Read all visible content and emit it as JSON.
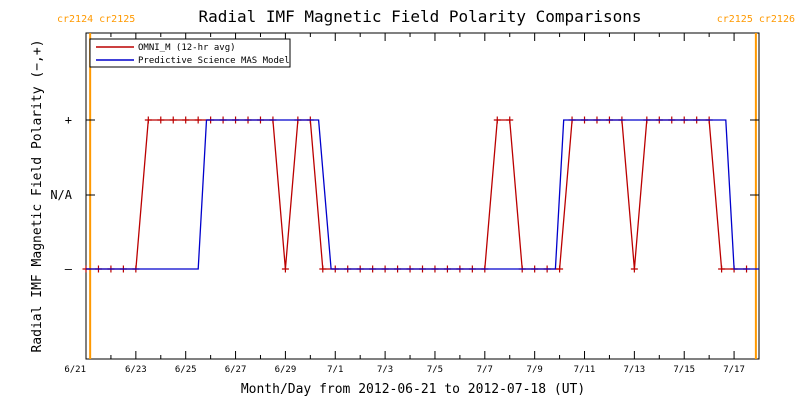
{
  "chart_data": {
    "type": "line",
    "title": "Radial IMF Magnetic Field Polarity Comparisons",
    "xlabel": "Month/Day from 2012-06-21 to 2012-07-18 (UT)",
    "ylabel": "Radial IMF Magnetic Field Polarity (−,+)",
    "y_tick_labels": [
      "–",
      "N/A",
      "+"
    ],
    "y_levels": [
      -1,
      0,
      1
    ],
    "xlim": [
      "2012-06-21",
      "2012-07-18"
    ],
    "x_tick_labels": [
      "6/21",
      "6/23",
      "6/25",
      "6/27",
      "6/29",
      "7/1",
      "7/3",
      "7/5",
      "7/7",
      "7/9",
      "7/11",
      "7/13",
      "7/15",
      "7/17"
    ],
    "x_tick_dates": [
      "2012-06-21",
      "2012-06-23",
      "2012-06-25",
      "2012-06-27",
      "2012-06-29",
      "2012-07-01",
      "2012-07-03",
      "2012-07-05",
      "2012-07-07",
      "2012-07-09",
      "2012-07-11",
      "2012-07-13",
      "2012-07-15",
      "2012-07-17"
    ],
    "carrington_markers": [
      {
        "label": "cr2124 cr2125",
        "date": "2012-06-21T04:00"
      },
      {
        "label": "cr2125 cr2126",
        "date": "2012-07-17T21:00"
      }
    ],
    "legend": {
      "position": "top-left"
    },
    "grid": false,
    "series": [
      {
        "name": "OMNI_M (12-hr avg)",
        "color": "#bb0000",
        "markers": "plus",
        "x": [
          "2012-06-21T00:00",
          "2012-06-21T12:00",
          "2012-06-22T00:00",
          "2012-06-22T12:00",
          "2012-06-23T00:00",
          "2012-06-23T12:00",
          "2012-06-24T00:00",
          "2012-06-24T12:00",
          "2012-06-25T00:00",
          "2012-06-25T12:00",
          "2012-06-26T00:00",
          "2012-06-26T12:00",
          "2012-06-27T00:00",
          "2012-06-27T12:00",
          "2012-06-28T00:00",
          "2012-06-28T12:00",
          "2012-06-29T00:00",
          "2012-06-29T12:00",
          "2012-06-30T00:00",
          "2012-06-30T12:00",
          "2012-07-01T00:00",
          "2012-07-01T12:00",
          "2012-07-02T00:00",
          "2012-07-02T12:00",
          "2012-07-03T00:00",
          "2012-07-03T12:00",
          "2012-07-04T00:00",
          "2012-07-04T12:00",
          "2012-07-05T00:00",
          "2012-07-05T12:00",
          "2012-07-06T00:00",
          "2012-07-06T12:00",
          "2012-07-07T00:00",
          "2012-07-07T12:00",
          "2012-07-08T00:00",
          "2012-07-08T12:00",
          "2012-07-09T00:00",
          "2012-07-09T12:00",
          "2012-07-10T00:00",
          "2012-07-10T12:00",
          "2012-07-11T00:00",
          "2012-07-11T12:00",
          "2012-07-12T00:00",
          "2012-07-12T12:00",
          "2012-07-13T00:00",
          "2012-07-13T12:00",
          "2012-07-14T00:00",
          "2012-07-14T12:00",
          "2012-07-15T00:00",
          "2012-07-15T12:00",
          "2012-07-16T00:00",
          "2012-07-16T12:00",
          "2012-07-17T00:00",
          "2012-07-17T12:00"
        ],
        "y": [
          -1,
          -1,
          -1,
          -1,
          -1,
          1,
          1,
          1,
          1,
          1,
          1,
          1,
          1,
          1,
          1,
          1,
          -1,
          1,
          1,
          -1,
          -1,
          -1,
          -1,
          -1,
          -1,
          -1,
          -1,
          -1,
          -1,
          -1,
          -1,
          -1,
          -1,
          1,
          1,
          -1,
          -1,
          -1,
          -1,
          1,
          1,
          1,
          1,
          1,
          -1,
          1,
          1,
          1,
          1,
          1,
          1,
          -1,
          -1,
          -1
        ]
      },
      {
        "name": "Predictive Science MAS Model",
        "color": "#0000cc",
        "markers": "none",
        "x": [
          "2012-06-21T00:00",
          "2012-06-25T12:00",
          "2012-06-25T20:00",
          "2012-06-30T08:00",
          "2012-06-30T20:00",
          "2012-07-09T20:00",
          "2012-07-10T04:00",
          "2012-07-16T16:00",
          "2012-07-17T00:00",
          "2012-07-18T00:00"
        ],
        "y": [
          -1,
          -1,
          1,
          1,
          -1,
          -1,
          1,
          1,
          -1,
          -1
        ]
      }
    ]
  }
}
